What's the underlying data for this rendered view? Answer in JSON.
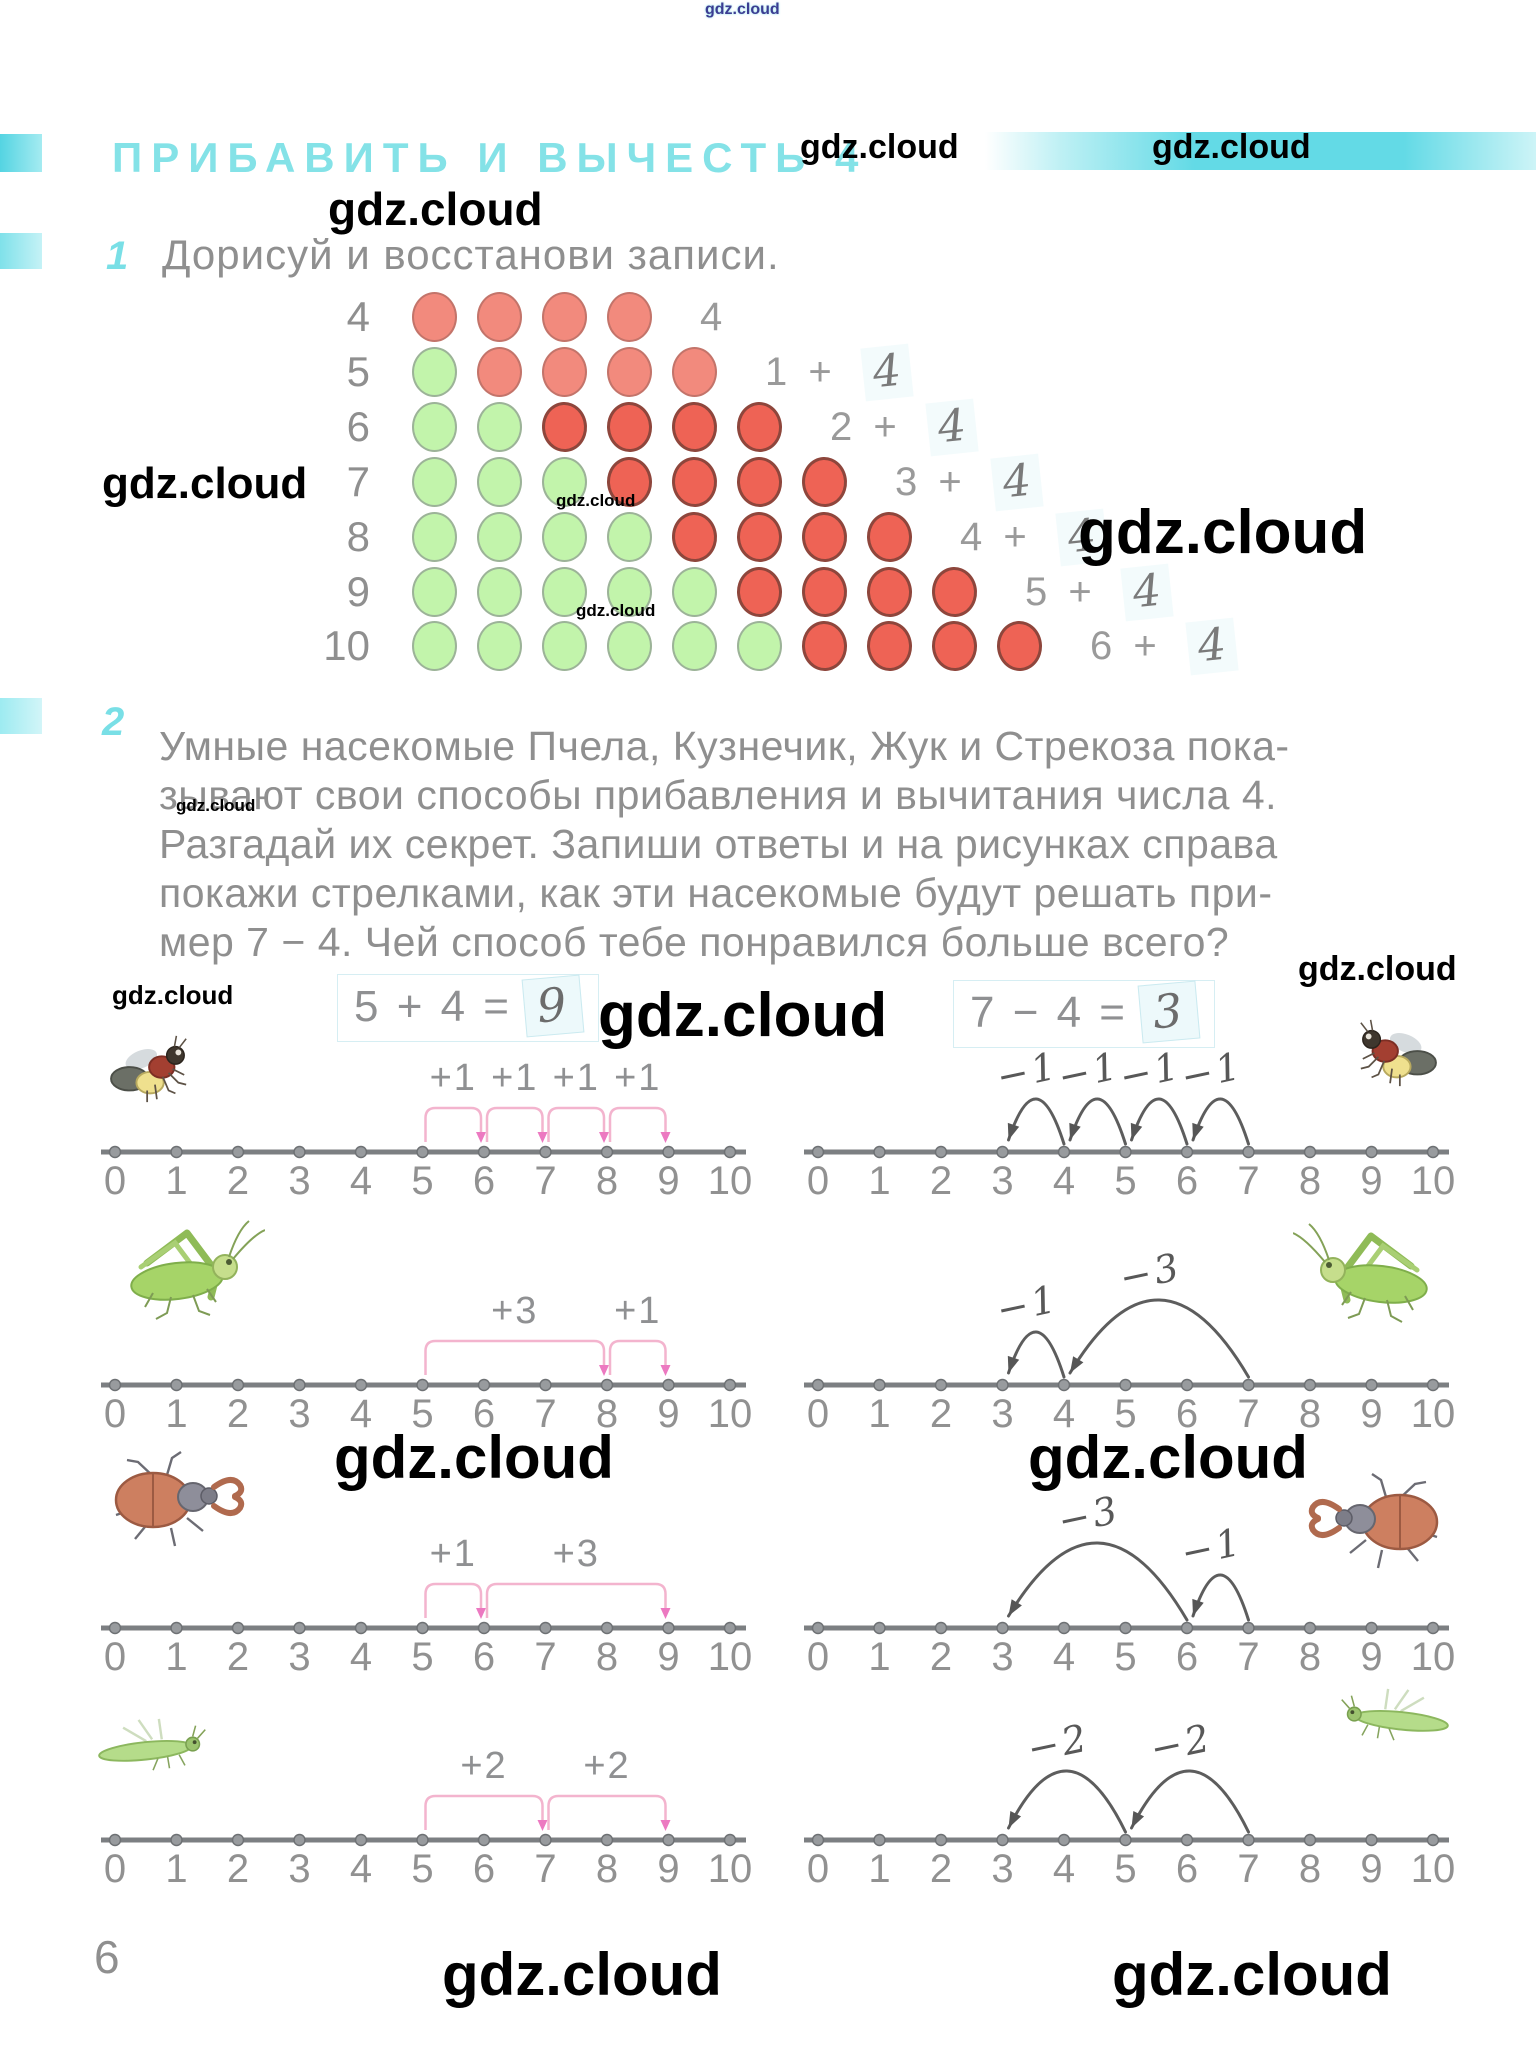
{
  "watermark": "gdz.cloud",
  "page_number": "6",
  "header": {
    "title": "ПРИБАВИТЬ И ВЫЧЕСТЬ 4"
  },
  "task1": {
    "number": "1",
    "text": "Дорисуй и восстанови записи.",
    "rows": [
      {
        "label": "4",
        "green": 0,
        "red": 4,
        "printed": "4",
        "written": ""
      },
      {
        "label": "5",
        "green": 1,
        "red": 4,
        "printed": "1 +",
        "written": "4"
      },
      {
        "label": "6",
        "green": 2,
        "red": 4,
        "printed": "2 +",
        "written": "4"
      },
      {
        "label": "7",
        "green": 3,
        "red": 4,
        "printed": "3 +",
        "written": "4"
      },
      {
        "label": "8",
        "green": 4,
        "red": 4,
        "printed": "4 +",
        "written": "4"
      },
      {
        "label": "9",
        "green": 5,
        "red": 4,
        "printed": "5 +",
        "written": "4"
      },
      {
        "label": "10",
        "green": 6,
        "red": 4,
        "printed": "6 +",
        "written": "4"
      }
    ]
  },
  "task2": {
    "number": "2",
    "lines": [
      "Умные насекомые Пчела, Кузнечик, Жук и Стрекоза пока-",
      "зывают свои способы прибавления и вычитания числа 4.",
      "Разгадай их секрет. Запиши ответы и на рисунках справа",
      "покажи стрелками, как эти насекомые будут решать при-",
      "мер 7 − 4. Чей способ тебе понравился больше всего?"
    ]
  },
  "ticks": [
    "0",
    "1",
    "2",
    "3",
    "4",
    "5",
    "6",
    "7",
    "8",
    "9",
    "10"
  ],
  "panels": [
    {
      "id": "bee-add",
      "insect": "bee",
      "mirror": false,
      "style": "printed",
      "equation": "5 + 4 =",
      "answer": "9",
      "jumps": [
        {
          "label": "+1",
          "from": 5,
          "to": 6
        },
        {
          "label": "+1",
          "from": 6,
          "to": 7
        },
        {
          "label": "+1",
          "from": 7,
          "to": 8
        },
        {
          "label": "+1",
          "from": 8,
          "to": 9
        }
      ]
    },
    {
      "id": "bee-sub",
      "insect": "bee",
      "mirror": true,
      "style": "hand",
      "equation": "7 − 4 =",
      "answer": "3",
      "jumps": [
        {
          "label": "−1",
          "from": 7,
          "to": 6
        },
        {
          "label": "−1",
          "from": 6,
          "to": 5
        },
        {
          "label": "−1",
          "from": 5,
          "to": 4
        },
        {
          "label": "−1",
          "from": 4,
          "to": 3
        }
      ]
    },
    {
      "id": "grasshopper-add",
      "insect": "grasshopper",
      "mirror": false,
      "style": "printed",
      "equation": "",
      "answer": "",
      "jumps": [
        {
          "label": "+3",
          "from": 5,
          "to": 8
        },
        {
          "label": "+1",
          "from": 8,
          "to": 9
        }
      ]
    },
    {
      "id": "grasshopper-sub",
      "insect": "grasshopper",
      "mirror": true,
      "style": "hand",
      "equation": "",
      "answer": "",
      "jumps": [
        {
          "label": "−3",
          "from": 7,
          "to": 4
        },
        {
          "label": "−1",
          "from": 4,
          "to": 3
        }
      ]
    },
    {
      "id": "beetle-add",
      "insect": "beetle",
      "mirror": false,
      "style": "printed",
      "equation": "",
      "answer": "",
      "jumps": [
        {
          "label": "+1",
          "from": 5,
          "to": 6
        },
        {
          "label": "+3",
          "from": 6,
          "to": 9
        }
      ]
    },
    {
      "id": "beetle-sub",
      "insect": "beetle",
      "mirror": true,
      "style": "hand",
      "equation": "",
      "answer": "",
      "jumps": [
        {
          "label": "−1",
          "from": 7,
          "to": 6
        },
        {
          "label": "−3",
          "from": 6,
          "to": 3
        }
      ]
    },
    {
      "id": "dragonfly-add",
      "insect": "dragonfly",
      "mirror": false,
      "style": "printed",
      "equation": "",
      "answer": "",
      "jumps": [
        {
          "label": "+2",
          "from": 5,
          "to": 7
        },
        {
          "label": "+2",
          "from": 7,
          "to": 9
        }
      ]
    },
    {
      "id": "dragonfly-sub",
      "insect": "dragonfly",
      "mirror": true,
      "style": "hand",
      "equation": "",
      "answer": "",
      "jumps": [
        {
          "label": "−2",
          "from": 7,
          "to": 5
        },
        {
          "label": "−2",
          "from": 5,
          "to": 3
        }
      ]
    }
  ]
}
